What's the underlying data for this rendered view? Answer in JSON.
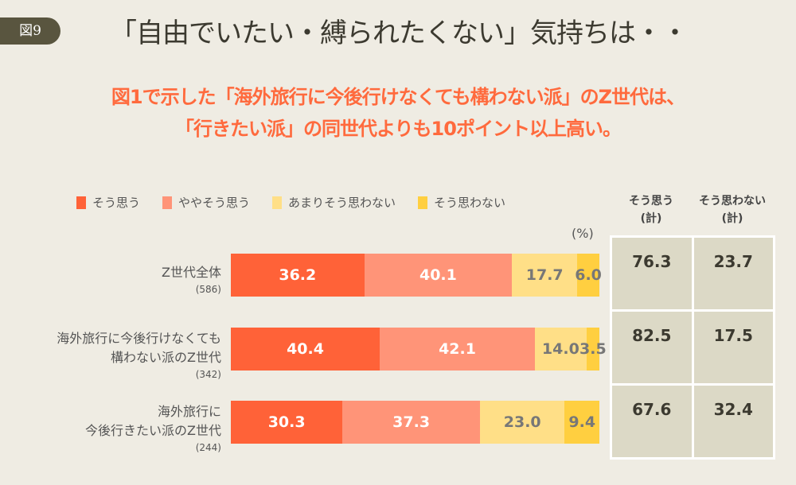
{
  "figure_label": "図9",
  "title": "「自由でいたい・縛られたくない」気持ちは・・",
  "subtitle": [
    "図1で示した「海外旅行に今後行けなくても構わない派」のZ世代は、",
    "「行きたい派」の同世代よりも10ポイント以上高い。"
  ],
  "colors": {
    "s1": "#ff6238",
    "s2": "#ff9478",
    "s3": "#ffdf87",
    "s4": "#ffcf40",
    "subtitle": "#ff6a3d"
  },
  "chart_data": {
    "type": "bar",
    "orientation": "horizontal-stacked-100",
    "unit": "(%)",
    "series": [
      {
        "name": "そう思う",
        "values": [
          36.2,
          40.4,
          30.3
        ]
      },
      {
        "name": "ややそう思う",
        "values": [
          40.1,
          42.1,
          37.3
        ]
      },
      {
        "name": "あまりそう思わない",
        "values": [
          17.7,
          14.0,
          23.0
        ]
      },
      {
        "name": "そう思わない",
        "values": [
          6.0,
          3.5,
          9.4
        ]
      }
    ],
    "categories": [
      {
        "lines": [
          "Z世代全体"
        ],
        "n": "(586)"
      },
      {
        "lines": [
          "海外旅行に今後行けなくても",
          "構わない派のZ世代"
        ],
        "n": "(342)"
      },
      {
        "lines": [
          "海外旅行に",
          "今後行きたい派のZ世代"
        ],
        "n": "(244)"
      }
    ],
    "table": {
      "headers": [
        [
          "そう思う",
          "(計)"
        ],
        [
          "そう思わない",
          "(計)"
        ]
      ],
      "rows": [
        [
          "76.3",
          "23.7"
        ],
        [
          "82.5",
          "17.5"
        ],
        [
          "67.6",
          "32.4"
        ]
      ]
    }
  }
}
